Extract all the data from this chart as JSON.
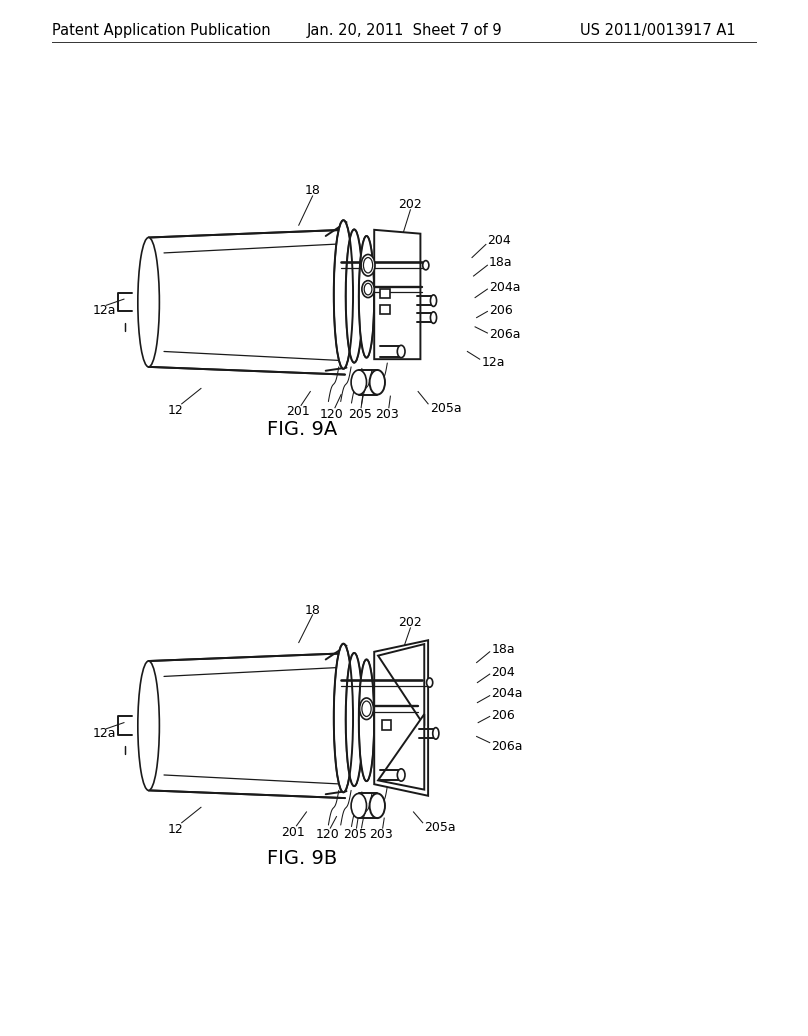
{
  "background_color": "#ffffff",
  "header_left": "Patent Application Publication",
  "header_center": "Jan. 20, 2011  Sheet 7 of 9",
  "header_right": "US 2011/0013917 A1",
  "header_font_size": 10.5,
  "fig_label_9a": "FIG. 9A",
  "fig_label_9b": "FIG. 9B",
  "fig_label_font_size": 14,
  "line_color": "#1a1a1a",
  "text_color": "#000000",
  "lw_main": 1.4,
  "lw_thin": 0.9,
  "lw_leader": 0.75
}
